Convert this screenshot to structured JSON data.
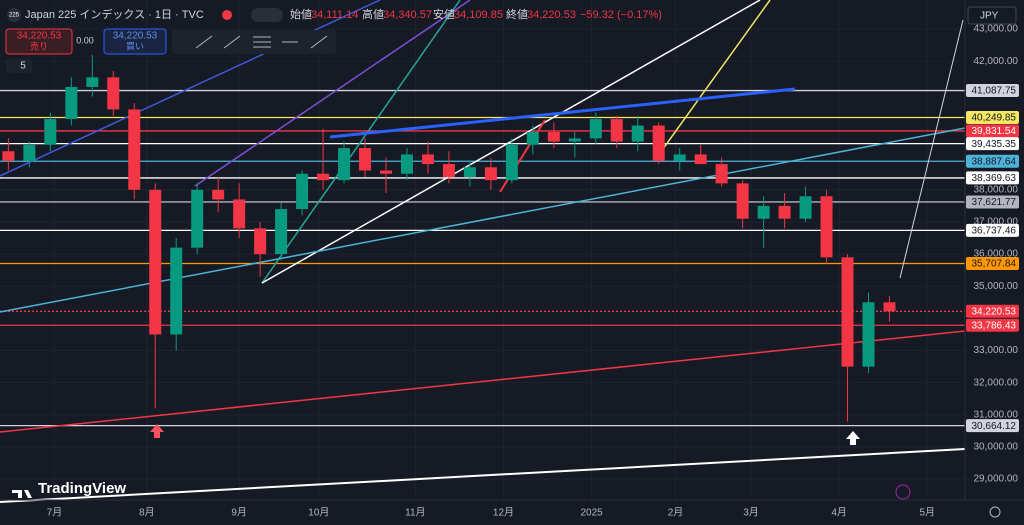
{
  "header": {
    "logo": "225",
    "symbol": "Japan 225 インデックス · 1日 · TVC",
    "open_label": "始値",
    "open": "34,111.14",
    "high_label": "高値",
    "high": "34,340.57",
    "low_label": "安値",
    "low": "34,109.85",
    "close_label": "終値",
    "close": "34,220.53",
    "change": "−59.32 (−0.17%)"
  },
  "trade": {
    "sell_price": "34,220.53",
    "sell_label": "売り",
    "spread": "0.00",
    "buy_price": "34,220.53",
    "buy_label": "買い"
  },
  "indicator_count": "5",
  "currency": "JPY",
  "brand": "TradingView",
  "chart_data": {
    "type": "candlestick",
    "up_color": "#089981",
    "down_color": "#f23645",
    "x": [
      2,
      7,
      12,
      17,
      22,
      27,
      32,
      37,
      42,
      47,
      52,
      57,
      62,
      67,
      72,
      77,
      82,
      87,
      92,
      97,
      102,
      107,
      112,
      117,
      122,
      127,
      132,
      137,
      142,
      147,
      152,
      157,
      162,
      167,
      172,
      177,
      182,
      187,
      192,
      197,
      202,
      207,
      212
    ],
    "open": [
      39200,
      38900,
      39400,
      40200,
      41200,
      41500,
      40500,
      38000,
      33500,
      36200,
      38000,
      37700,
      36800,
      36000,
      37400,
      38500,
      38300,
      39300,
      38600,
      38500,
      39100,
      38800,
      38400,
      38700,
      38300,
      39400,
      39800,
      39500,
      39600,
      40200,
      39500,
      40000,
      38900,
      39100,
      38800,
      38200,
      37100,
      37500,
      37100,
      37800,
      35900,
      32500,
      34500
    ],
    "high": [
      39600,
      39500,
      40400,
      41500,
      42200,
      41700,
      40700,
      38200,
      36500,
      38200,
      38400,
      38200,
      37000,
      37600,
      38600,
      39900,
      39500,
      39600,
      39000,
      39300,
      39500,
      39200,
      38900,
      39000,
      39600,
      40000,
      40100,
      39800,
      40400,
      40300,
      40300,
      40100,
      39300,
      39400,
      39000,
      38300,
      37800,
      37900,
      38100,
      38000,
      36000,
      34800,
      34700
    ],
    "low": [
      38600,
      38700,
      39200,
      40000,
      40900,
      40300,
      37700,
      31200,
      33000,
      36000,
      37300,
      36500,
      35300,
      35800,
      37200,
      38000,
      38200,
      38400,
      37900,
      38300,
      38500,
      38200,
      38100,
      38000,
      38200,
      39100,
      39300,
      39000,
      39400,
      39300,
      39200,
      38800,
      38600,
      38800,
      38100,
      36800,
      36200,
      36800,
      37000,
      35700,
      30800,
      32300,
      33900
    ],
    "close": [
      38900,
      39400,
      40200,
      41200,
      41500,
      40500,
      38000,
      33500,
      36200,
      38000,
      37700,
      36800,
      36000,
      37400,
      38500,
      38300,
      39300,
      38600,
      38500,
      39100,
      38800,
      38400,
      38700,
      38300,
      39400,
      39800,
      39500,
      39600,
      40200,
      39500,
      40000,
      38900,
      39100,
      38800,
      38200,
      37100,
      37500,
      37100,
      37800,
      35900,
      32500,
      34500,
      34220.53
    ],
    "xlim": [
      0,
      230
    ],
    "xticks": [
      {
        "value": 13,
        "label": "7月"
      },
      {
        "value": 35,
        "label": "8月"
      },
      {
        "value": 57,
        "label": "9月"
      },
      {
        "value": 76,
        "label": "10月"
      },
      {
        "value": 99,
        "label": "11月"
      },
      {
        "value": 120,
        "label": "12月"
      },
      {
        "value": 141,
        "label": "2025"
      },
      {
        "value": 161,
        "label": "2月"
      },
      {
        "value": 179,
        "label": "3月"
      },
      {
        "value": 200,
        "label": "4月"
      },
      {
        "value": 221,
        "label": "5月"
      }
    ],
    "ylim": [
      28350,
      43500
    ],
    "yticks": [
      {
        "value": 43000,
        "label": "43,000.00"
      },
      {
        "value": 42000,
        "label": "42,000.00"
      },
      {
        "value": 38000,
        "label": "38,000.00"
      },
      {
        "value": 37000,
        "label": "37,000.00"
      },
      {
        "value": 36000,
        "label": "36,000.00"
      },
      {
        "value": 35000,
        "label": "35,000.00"
      },
      {
        "value": 33000,
        "label": "33,000.00"
      },
      {
        "value": 32000,
        "label": "32,000.00"
      },
      {
        "value": 31000,
        "label": "31,000.00"
      },
      {
        "value": 30000,
        "label": "30,000.00"
      },
      {
        "value": 29000,
        "label": "29,000.00"
      }
    ],
    "levels": [
      {
        "value": 41087.75,
        "label": "41,087.75",
        "color": "#d1d4dc"
      },
      {
        "value": 40249.85,
        "label": "40,249.85",
        "color": "#f5e663"
      },
      {
        "value": 39831.54,
        "label": "39,831.54",
        "color": "#f23645"
      },
      {
        "value": 39435.35,
        "label": "39,435.35",
        "color": "#ffffff"
      },
      {
        "value": 38887.64,
        "label": "38,887.64",
        "color": "#4fb3d9"
      },
      {
        "value": 38369.63,
        "label": "38,369.63",
        "color": "#ffffff"
      },
      {
        "value": 37621.77,
        "label": "37,621.77",
        "color": "#b2b5be"
      },
      {
        "value": 36737.46,
        "label": "36,737.46",
        "color": "#ffffff"
      },
      {
        "value": 35707.84,
        "label": "35,707.84",
        "color": "#ff9800"
      },
      {
        "value": 34220.53,
        "label": "34,220.53",
        "color": "#f23645",
        "dashed": true
      },
      {
        "value": 33786.43,
        "label": "33,786.43",
        "color": "#f23645"
      },
      {
        "value": 30664.12,
        "label": "30,664.12",
        "color": "#d1d4dc"
      }
    ]
  }
}
